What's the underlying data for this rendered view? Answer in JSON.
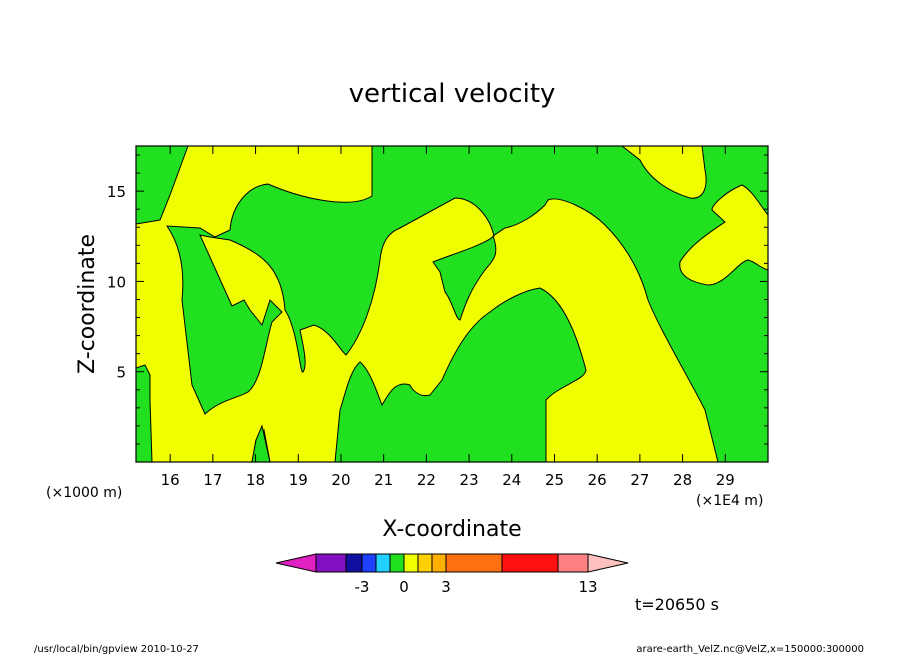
{
  "chart_data": {
    "type": "heatmap",
    "title": "vertical velocity",
    "xlabel": "X-coordinate",
    "ylabel": "Z-coordinate",
    "x_unit_left": "(×1000 m)",
    "x_unit_right": "(×1E4 m)",
    "xlim": [
      15.2,
      30.0
    ],
    "ylim": [
      0.0,
      17.5
    ],
    "x_ticks": [
      "16",
      "17",
      "18",
      "19",
      "20",
      "21",
      "22",
      "23",
      "24",
      "25",
      "26",
      "27",
      "28",
      "29"
    ],
    "y_ticks": [
      "5",
      "10",
      "15"
    ],
    "grid": false,
    "colorbar": {
      "colors": [
        "#e020c0",
        "#8010c0",
        "#1010a0",
        "#2040ff",
        "#20d0ff",
        "#20e020",
        "#f0ff00",
        "#ffd000",
        "#ffb000",
        "#ff7010",
        "#ff1010",
        "#ff8080",
        "#ffc0c0"
      ],
      "tick_labels": [
        "-3",
        "0",
        "3",
        "13"
      ],
      "placement": "bottom"
    },
    "contour_fill_colors": {
      "positive": "#f0ff00",
      "negative": "#20e020"
    },
    "time_label": "t=20650 s"
  },
  "footer": {
    "left": "/usr/local/bin/gpview   2010-10-27",
    "right": "arare-earth_VelZ.nc@VelZ,x=150000:300000"
  }
}
